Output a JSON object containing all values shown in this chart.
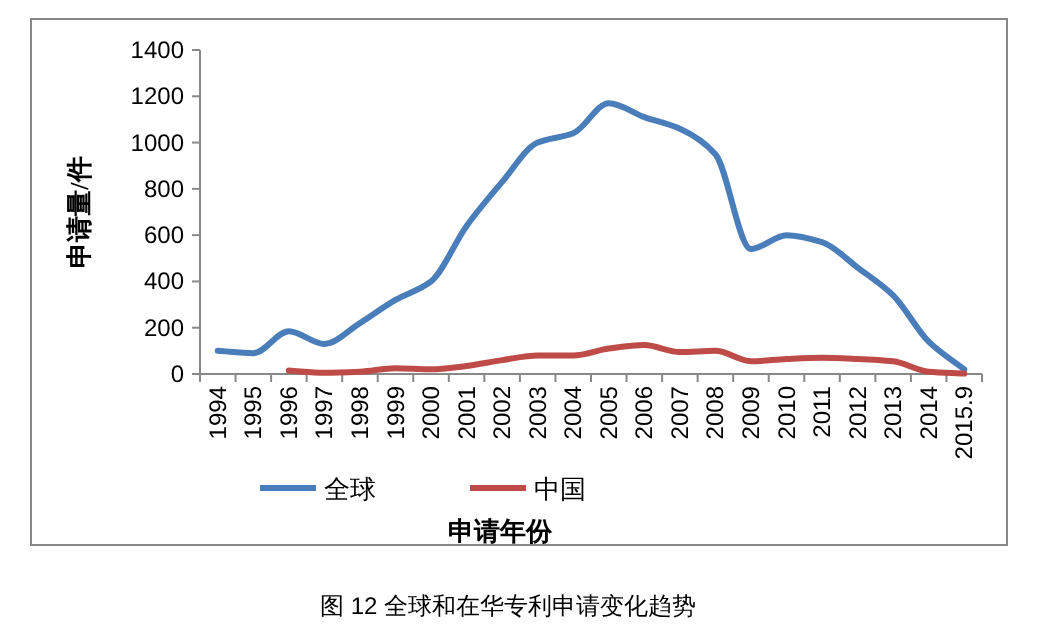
{
  "chart_data": {
    "type": "line",
    "title": "图 12 全球和在华专利申请变化趋势",
    "xlabel": "申请年份",
    "ylabel": "申请量/件",
    "categories": [
      "1994",
      "1995",
      "1996",
      "1997",
      "1998",
      "1999",
      "2000",
      "2001",
      "2002",
      "2003",
      "2004",
      "2005",
      "2006",
      "2007",
      "2008",
      "2009",
      "2010",
      "2011",
      "2012",
      "2013",
      "2014",
      "2015.9"
    ],
    "series": [
      {
        "name": "全球",
        "color": "#4a7ebb",
        "values": [
          100,
          90,
          185,
          130,
          220,
          320,
          400,
          640,
          830,
          1000,
          1040,
          1170,
          1110,
          1060,
          950,
          540,
          600,
          570,
          460,
          340,
          140,
          20
        ]
      },
      {
        "name": "中国",
        "color": "#be4b48",
        "values": [
          null,
          null,
          15,
          5,
          10,
          25,
          20,
          35,
          60,
          80,
          80,
          110,
          125,
          95,
          100,
          55,
          65,
          70,
          65,
          55,
          10,
          2
        ]
      }
    ],
    "ylim": [
      0,
      1400
    ],
    "yticks": [
      0,
      200,
      400,
      600,
      800,
      1000,
      1200,
      1400
    ],
    "grid": false,
    "legend": "bottom",
    "marker": "none",
    "line_style": "solid"
  }
}
